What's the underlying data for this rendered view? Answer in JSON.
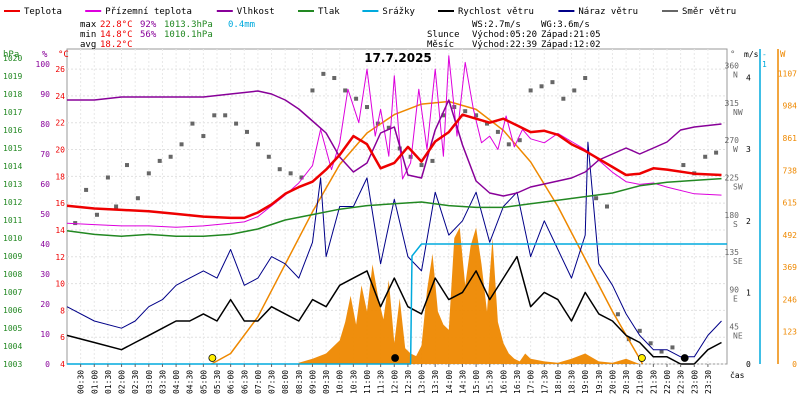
{
  "chart_data": {
    "type": "line",
    "title": "17.7.2025",
    "xlabel": "čas",
    "legend_position": "top",
    "legend": [
      {
        "key": "teplota",
        "label": "Teplota",
        "color": "#ee0000"
      },
      {
        "key": "prizemni",
        "label": "Přízemní teplota",
        "color": "#dd00dd"
      },
      {
        "key": "vlhkost",
        "label": "Vlhkost",
        "color": "#880099"
      },
      {
        "key": "tlak",
        "label": "Tlak",
        "color": "#228822"
      },
      {
        "key": "srazky",
        "label": "Srážky",
        "color": "#00aadd"
      },
      {
        "key": "rychlost",
        "label": "Rychlost větru",
        "color": "#000000"
      },
      {
        "key": "naraz",
        "label": "Náraz větru",
        "color": "#000088"
      },
      {
        "key": "smer",
        "label": "Směr větru",
        "color": "#666666"
      }
    ],
    "stats": {
      "max": {
        "label": "max",
        "temp": "22.8°C",
        "hum": "92%",
        "press": "1013.3hPa",
        "rain": "0.4mm"
      },
      "min": {
        "label": "min",
        "temp": "14.8°C",
        "hum": "56%",
        "press": "1010.1hPa"
      },
      "avg": {
        "label": "avg",
        "temp": "18.2°C"
      }
    },
    "info": {
      "ws": "WS:2.7m/s",
      "wg": "WG:3.6m/s",
      "sun_label": "Slunce",
      "sun_rise": "Východ:05:20",
      "sun_set": "Západ:21:05",
      "moon_label": "Měsíc",
      "moon_rise": "Východ:22:39",
      "moon_set": "Západ:12:02"
    },
    "axes": {
      "hpa": {
        "label": "hPa",
        "ticks": [
          "1020",
          "1019",
          "1018",
          "1017",
          "1016",
          "1015",
          "1014",
          "1013",
          "1012",
          "1011",
          "1010",
          "1009",
          "1008",
          "1007",
          "1006",
          "1005",
          "1004",
          "1003"
        ],
        "color": "#228822",
        "range": [
          1003,
          1020.5
        ]
      },
      "pct": {
        "label": "%",
        "ticks": [
          "100",
          "90",
          "80",
          "70",
          "60",
          "50",
          "40",
          "30",
          "20",
          "10",
          "0"
        ],
        "color": "#880099",
        "range": [
          0,
          105
        ]
      },
      "temp": {
        "label": "°C",
        "ticks": [
          "26",
          "24",
          "22",
          "20",
          "18",
          "16",
          "14",
          "12",
          "10",
          "8",
          "6",
          "4"
        ],
        "color": "#ee0000",
        "range": [
          4,
          27.5
        ]
      },
      "dir": {
        "label": "°",
        "ticks": [
          "360",
          "315",
          "270",
          "225",
          "180",
          "135",
          "90",
          "45"
        ],
        "names": [
          "N",
          "NW",
          "W",
          "SW",
          "S",
          "SE",
          "E",
          "NE"
        ],
        "color": "#666666",
        "range": [
          0,
          380
        ]
      },
      "ms": {
        "label": "m/s",
        "ticks": [
          "4",
          "3",
          "2",
          "1",
          "0"
        ],
        "color": "#000000",
        "range": [
          0,
          4.4
        ]
      },
      "mm": {
        "label": "-",
        "ticks": [
          "1"
        ],
        "color": "#00aadd",
        "range": [
          0,
          1.05
        ]
      },
      "w": {
        "label": "W",
        "ticks": [
          "1107",
          "984",
          "861",
          "738",
          "615",
          "492",
          "369",
          "246",
          "123",
          "0"
        ],
        "color": "#ee8800",
        "range": [
          0,
          1200
        ]
      }
    },
    "x_ticks": [
      "00:30",
      "01:00",
      "01:30",
      "02:00",
      "02:30",
      "03:00",
      "03:30",
      "04:00",
      "04:30",
      "05:00",
      "05:30",
      "06:00",
      "06:30",
      "07:00",
      "07:30",
      "08:00",
      "08:30",
      "09:00",
      "09:30",
      "10:00",
      "10:30",
      "11:00",
      "11:30",
      "12:00",
      "12:30",
      "13:00",
      "13:30",
      "14:00",
      "14:30",
      "15:00",
      "15:30",
      "16:00",
      "16:30",
      "17:00",
      "17:30",
      "18:00",
      "18:30",
      "19:00",
      "19:30",
      "20:00",
      "20:30",
      "21:00",
      "21:30",
      "22:00",
      "22:30",
      "23:00",
      "23:30"
    ],
    "x_range_hours": [
      0,
      24.2
    ],
    "series": [
      {
        "key": "teplota",
        "name": "Teplota",
        "unit": "°C",
        "color": "#ee0000",
        "x": [
          0,
          1,
          2,
          3,
          4,
          5,
          6,
          6.5,
          7,
          7.5,
          8,
          8.5,
          9,
          9.5,
          10,
          10.5,
          11,
          11.5,
          12,
          12.5,
          13,
          13.5,
          14,
          14.5,
          15,
          15.5,
          16,
          16.5,
          17,
          17.5,
          18,
          18.5,
          19,
          19.5,
          20,
          20.5,
          21,
          21.5,
          22,
          23,
          24
        ],
        "y": [
          15.8,
          15.6,
          15.5,
          15.4,
          15.2,
          15.0,
          14.9,
          14.9,
          15.3,
          15.9,
          16.7,
          17.2,
          17.6,
          18.5,
          19.6,
          21.0,
          20.4,
          18.6,
          19.0,
          20.2,
          19.1,
          20.6,
          21.3,
          22.6,
          22.3,
          22.0,
          22.3,
          21.8,
          21.3,
          21.4,
          21.1,
          20.4,
          19.9,
          19.3,
          18.7,
          18.1,
          18.2,
          18.6,
          18.5,
          18.2,
          18.1
        ]
      },
      {
        "key": "prizemni",
        "name": "Přízemní teplota",
        "unit": "°C",
        "color": "#dd00dd",
        "x": [
          0,
          1,
          2,
          3,
          4,
          5,
          6,
          6.5,
          7,
          7.5,
          8,
          8.5,
          9,
          9.3,
          9.7,
          10,
          10.3,
          10.7,
          11,
          11.3,
          11.5,
          11.8,
          12,
          12.3,
          12.6,
          12.9,
          13.2,
          13.5,
          13.8,
          14,
          14.3,
          14.6,
          14.9,
          15.2,
          15.5,
          15.8,
          16.1,
          16.4,
          16.7,
          17,
          17.5,
          18,
          18.5,
          19,
          19.5,
          20,
          20.5,
          21,
          21.5,
          22,
          23,
          24
        ],
        "y": [
          14.5,
          14.4,
          14.3,
          14.3,
          14.2,
          14.3,
          14.5,
          14.6,
          15.0,
          15.8,
          16.6,
          17.5,
          18.8,
          21.5,
          18.5,
          20.5,
          24.5,
          22.0,
          26.0,
          21.0,
          23.0,
          19.5,
          25.5,
          17.8,
          19.0,
          24.5,
          20.0,
          26.0,
          19.5,
          27.0,
          21.0,
          26.5,
          23.0,
          20.5,
          21.0,
          20.0,
          22.5,
          20.2,
          21.5,
          20.8,
          20.5,
          21.2,
          20.6,
          20.0,
          19.2,
          18.3,
          17.6,
          17.4,
          17.5,
          17.2,
          16.7,
          16.6
        ]
      },
      {
        "key": "vlhkost",
        "name": "Vlhkost",
        "unit": "%",
        "color": "#880099",
        "x": [
          0,
          1,
          2,
          3,
          4,
          5,
          6,
          7,
          7.5,
          8,
          8.5,
          9,
          9.5,
          10,
          10.5,
          11,
          11.5,
          12,
          12.5,
          13,
          13.5,
          14,
          14.5,
          15,
          15.5,
          16,
          16.5,
          17,
          17.5,
          18,
          18.5,
          19,
          19.5,
          20,
          20.5,
          21,
          21.5,
          22,
          22.5,
          23,
          24
        ],
        "y": [
          88,
          88,
          89,
          89,
          89,
          89,
          90,
          91,
          90,
          88,
          85,
          81,
          77,
          69,
          64,
          67,
          77,
          79,
          63,
          62,
          78,
          88,
          73,
          61,
          57,
          56,
          57,
          59,
          60,
          61,
          62,
          64,
          68,
          70,
          72,
          70,
          72,
          74,
          78,
          79,
          80
        ]
      },
      {
        "key": "tlak",
        "name": "Tlak",
        "unit": "hPa",
        "color": "#228822",
        "x": [
          0,
          1,
          2,
          3,
          4,
          5,
          6,
          7,
          8,
          9,
          10,
          11,
          12,
          13,
          14,
          15,
          16,
          17,
          18,
          19,
          20,
          21,
          22,
          23,
          24
        ],
        "y": [
          1010.4,
          1010.2,
          1010.1,
          1010.2,
          1010.1,
          1010.1,
          1010.2,
          1010.5,
          1011.0,
          1011.3,
          1011.6,
          1011.8,
          1011.9,
          1012.0,
          1011.8,
          1011.7,
          1011.7,
          1011.9,
          1012.1,
          1012.3,
          1012.5,
          1012.9,
          1013.1,
          1013.2,
          1013.3
        ]
      },
      {
        "key": "srazky",
        "name": "Srážky",
        "unit": "mm",
        "color": "#00aadd",
        "x": [
          0,
          12.6,
          12.65,
          13,
          24.2
        ],
        "y": [
          0,
          0,
          0.36,
          0.4,
          0.4
        ]
      },
      {
        "key": "rychlost",
        "name": "Rychlost větru",
        "unit": "m/s",
        "color": "#000000",
        "x": [
          0,
          1,
          2,
          2.5,
          3,
          3.5,
          4,
          4.5,
          5,
          5.5,
          6,
          6.5,
          7,
          7.5,
          8,
          8.5,
          9,
          9.5,
          10,
          10.5,
          11,
          11.5,
          12,
          12.5,
          13,
          13.5,
          14,
          14.5,
          15,
          15.5,
          16,
          16.5,
          17,
          17.5,
          18,
          18.5,
          19,
          19.5,
          20,
          20.5,
          21,
          21.5,
          22,
          22.5,
          23,
          23.5,
          24
        ],
        "y": [
          0.4,
          0.3,
          0.2,
          0.3,
          0.4,
          0.5,
          0.6,
          0.6,
          0.7,
          0.6,
          0.9,
          0.6,
          0.6,
          0.8,
          0.7,
          0.6,
          0.9,
          0.8,
          1.1,
          1.2,
          1.3,
          0.8,
          1.2,
          0.8,
          0.7,
          1.2,
          0.9,
          1.0,
          1.3,
          0.9,
          1.2,
          1.5,
          0.8,
          1.0,
          0.9,
          0.6,
          1.0,
          0.7,
          0.6,
          0.4,
          0.3,
          0.1,
          0.1,
          0.0,
          0.0,
          0.2,
          0.3
        ]
      },
      {
        "key": "naraz",
        "name": "Náraz větru",
        "unit": "m/s",
        "color": "#000088",
        "x": [
          0,
          1,
          2,
          2.5,
          3,
          3.5,
          4,
          4.5,
          5,
          5.5,
          6,
          6.5,
          7,
          7.5,
          8,
          8.5,
          9,
          9.3,
          9.5,
          10,
          10.5,
          11,
          11.5,
          12,
          12.5,
          13,
          13.5,
          14,
          14.5,
          15,
          15.5,
          16,
          16.5,
          17,
          17.5,
          18,
          18.5,
          19,
          19.1,
          19.5,
          20,
          20.5,
          21,
          21.5,
          22,
          22.5,
          23,
          23.5,
          24
        ],
        "y": [
          0.8,
          0.6,
          0.5,
          0.6,
          0.8,
          0.9,
          1.1,
          1.2,
          1.3,
          1.2,
          1.6,
          1.1,
          1.2,
          1.5,
          1.4,
          1.2,
          1.7,
          2.6,
          1.5,
          2.2,
          2.2,
          2.6,
          1.4,
          2.3,
          1.5,
          1.3,
          2.4,
          1.8,
          2.0,
          2.4,
          1.7,
          2.2,
          2.4,
          1.5,
          2.0,
          1.6,
          1.2,
          1.8,
          3.1,
          1.4,
          1.1,
          0.7,
          0.4,
          0.2,
          0.2,
          0.1,
          0.1,
          0.4,
          0.6
        ]
      },
      {
        "key": "smer",
        "name": "Směr větru",
        "unit": "°",
        "color": "#666666",
        "style": "points",
        "x": [
          0.3,
          0.7,
          1.1,
          1.5,
          1.8,
          2.2,
          2.6,
          3.0,
          3.4,
          3.8,
          4.2,
          4.6,
          5.0,
          5.4,
          5.8,
          6.2,
          6.6,
          7.0,
          7.4,
          7.8,
          8.2,
          8.6,
          9.0,
          9.4,
          9.8,
          10.2,
          10.6,
          11.0,
          11.4,
          11.8,
          12.2,
          12.6,
          13.0,
          13.4,
          13.8,
          14.2,
          14.6,
          15.0,
          15.4,
          15.8,
          16.2,
          16.6,
          17.0,
          17.4,
          17.8,
          18.2,
          18.6,
          19.0,
          19.4,
          19.8,
          20.2,
          20.6,
          21.0,
          21.4,
          21.8,
          22.2,
          22.6,
          23.0,
          23.4,
          23.8
        ],
        "y": [
          170,
          210,
          180,
          225,
          190,
          240,
          200,
          230,
          245,
          250,
          265,
          290,
          275,
          300,
          300,
          290,
          280,
          265,
          250,
          235,
          230,
          225,
          330,
          350,
          345,
          330,
          320,
          310,
          290,
          285,
          260,
          250,
          240,
          245,
          300,
          310,
          305,
          300,
          290,
          280,
          265,
          270,
          330,
          335,
          340,
          320,
          330,
          345,
          200,
          190,
          60,
          30,
          40,
          25,
          15,
          20,
          240,
          230,
          250,
          255
        ]
      },
      {
        "key": "solar",
        "name": "Solar radiation",
        "unit": "W",
        "color": "#ee8800",
        "style": "line",
        "x": [
          5.3,
          6,
          7,
          8,
          9,
          10,
          11,
          12,
          13,
          14,
          15,
          16,
          17,
          18,
          19,
          20,
          21,
          21.1
        ],
        "y": [
          0,
          40,
          180,
          380,
          580,
          760,
          880,
          950,
          990,
          1000,
          970,
          890,
          770,
          600,
          400,
          200,
          20,
          0
        ]
      },
      {
        "key": "solar_fill",
        "name": "Solar fill",
        "unit": "W",
        "color": "#ee8800",
        "style": "area",
        "x": [
          8.5,
          9,
          9.5,
          10,
          10.2,
          10.4,
          10.6,
          10.8,
          11,
          11.2,
          11.4,
          11.6,
          11.8,
          12,
          12.2,
          12.4,
          12.6,
          12.8,
          13,
          13.2,
          13.4,
          13.6,
          13.8,
          14,
          14.2,
          14.4,
          14.6,
          14.8,
          15,
          15.2,
          15.4,
          15.6,
          15.8,
          16,
          16.2,
          16.4,
          16.6,
          16.8,
          17,
          17.5,
          18,
          18.5,
          19,
          19.5,
          20,
          20.5,
          21
        ],
        "y": [
          5,
          20,
          40,
          90,
          160,
          260,
          150,
          300,
          200,
          380,
          260,
          170,
          320,
          80,
          250,
          60,
          40,
          30,
          70,
          280,
          420,
          200,
          150,
          130,
          480,
          520,
          300,
          450,
          520,
          380,
          200,
          480,
          160,
          80,
          40,
          20,
          10,
          40,
          20,
          10,
          5,
          20,
          40,
          10,
          5,
          20,
          0
        ]
      }
    ],
    "markers": [
      {
        "kind": "sunrise",
        "label": "sun",
        "x_hour": 5.33,
        "color": "#ffee00"
      },
      {
        "kind": "sunset",
        "label": "sun",
        "x_hour": 21.08,
        "color": "#ffee00"
      },
      {
        "kind": "moonset",
        "label": "moon",
        "x_hour": 12.03,
        "color": "#000000"
      },
      {
        "kind": "moonrise",
        "label": "moon",
        "x_hour": 22.65,
        "color": "#000000"
      }
    ]
  }
}
